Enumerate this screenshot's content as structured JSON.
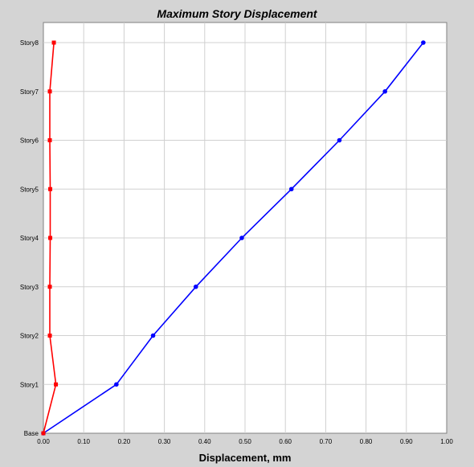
{
  "chart_data": {
    "type": "line",
    "title": "Maximum Story Displacement",
    "xlabel": "Displacement, mm",
    "ylabel": "",
    "xlim": [
      0,
      1.0
    ],
    "x_ticks": [
      "0.00",
      "0.10",
      "0.20",
      "0.30",
      "0.40",
      "0.50",
      "0.60",
      "0.70",
      "0.80",
      "0.90",
      "1.00"
    ],
    "categories": [
      "Base",
      "Story1",
      "Story2",
      "Story3",
      "Story4",
      "Story5",
      "Story6",
      "Story7",
      "Story8"
    ],
    "grid": true,
    "series": [
      {
        "color": "#0000ff",
        "marker": "circle",
        "values": [
          0.0,
          0.181,
          0.272,
          0.378,
          0.492,
          0.615,
          0.734,
          0.847,
          0.942
        ]
      },
      {
        "color": "#ff0000",
        "marker": "square",
        "values": [
          0.0,
          0.031,
          0.016,
          0.016,
          0.017,
          0.017,
          0.016,
          0.016,
          0.026
        ]
      }
    ]
  }
}
